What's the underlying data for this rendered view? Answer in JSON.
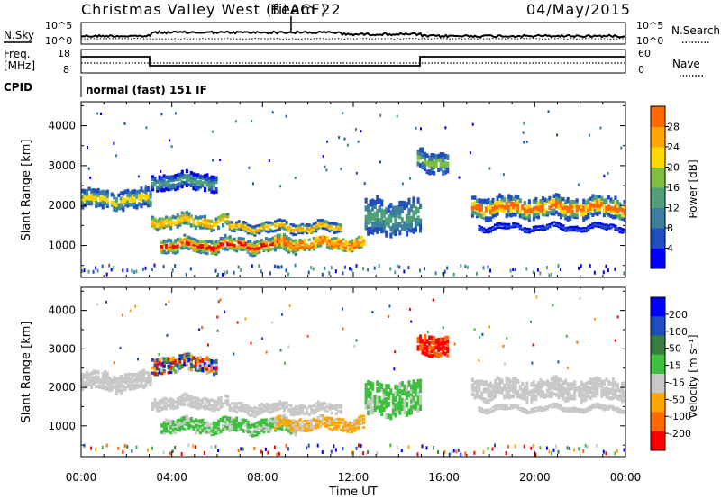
{
  "header": {
    "title": "Christmas Valley West (fitACF)",
    "beam": "Beam 22",
    "date": "04/May/2015"
  },
  "noise_panel": {
    "left_label": "N.Sky",
    "right_label": "N.Search",
    "left_ticks": [
      "10^5",
      "10^0"
    ],
    "right_ticks": [
      "10^5",
      "10^0"
    ]
  },
  "freq_panel": {
    "left_label_1": "Freq.",
    "left_label_2": "[MHz]",
    "right_label": "Nave",
    "left_ticks": [
      "18",
      "8"
    ],
    "right_ticks": [
      "60",
      "0"
    ]
  },
  "cpid_panel": {
    "label": "CPID",
    "value": "normal (fast) 151 IF"
  },
  "colors": {
    "power": [
      "#0000ff",
      "#1f4fbf",
      "#3a7fa0",
      "#4fa07a",
      "#7fbf3f",
      "#ffd700",
      "#ffa500",
      "#ff6a00",
      "#ff0000"
    ],
    "velocity": [
      "#0000ff",
      "#1f4fbf",
      "#3a7f3f",
      "#3fbf3f",
      "#c8c8c8",
      "#ffa500",
      "#ff6a00",
      "#ff0000"
    ],
    "ground_scatter": "#c8c8c8"
  },
  "chart_data": [
    {
      "type": "heatmap",
      "name": "power",
      "ylabel": "Slant Range [km]",
      "xlabel": "",
      "yticks": [
        "1000",
        "2000",
        "3000",
        "4000"
      ],
      "ylim": [
        200,
        4600
      ],
      "xlim": [
        0,
        24
      ],
      "colorbar": {
        "label": "Power [dB]",
        "ticks": [
          "4",
          "8",
          "12",
          "16",
          "20",
          "24",
          "28"
        ]
      }
    },
    {
      "type": "heatmap",
      "name": "velocity",
      "ylabel": "Slant Range [km]",
      "xlabel": "Time UT",
      "xticks": [
        "00:00",
        "04:00",
        "08:00",
        "12:00",
        "16:00",
        "20:00",
        "00:00"
      ],
      "yticks": [
        "1000",
        "2000",
        "3000",
        "4000"
      ],
      "ylim": [
        200,
        4600
      ],
      "xlim": [
        0,
        24
      ],
      "colorbar": {
        "label": "Velocity [m s⁻¹]",
        "ticks": [
          "200",
          "100",
          "50",
          "15",
          "-15",
          "-50",
          "-100",
          "-200"
        ]
      }
    }
  ]
}
